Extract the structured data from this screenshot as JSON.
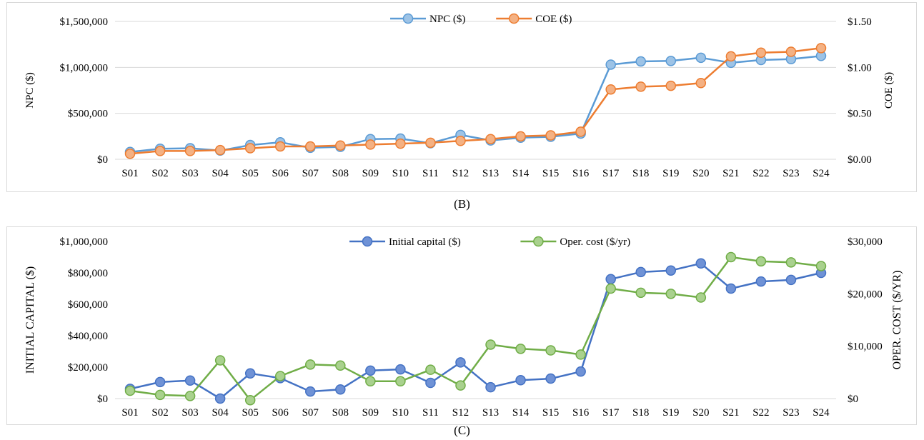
{
  "charts": [
    {
      "caption": "(B)",
      "chart_data": {
        "type": "line",
        "categories": [
          "S01",
          "S02",
          "S03",
          "S04",
          "S05",
          "S06",
          "S07",
          "S08",
          "S09",
          "S10",
          "S11",
          "S12",
          "S13",
          "S14",
          "S15",
          "S16",
          "S17",
          "S18",
          "S19",
          "S20",
          "S21",
          "S22",
          "S23",
          "S24"
        ],
        "ylabel_left": "NPC ($)",
        "ylabel_right": "COE ($)",
        "ylim_left": [
          0,
          1500000
        ],
        "ylim_right": [
          0,
          1.5
        ],
        "yticks_left": [
          "$0",
          "$500,000",
          "$1,000,000",
          "$1,500,000"
        ],
        "yticks_right": [
          "$0.00",
          "$0.50",
          "$1.00",
          "$1.50"
        ],
        "grid": true,
        "legend_position": "top-center",
        "series": [
          {
            "name": "NPC ($)",
            "axis": "left",
            "color": "#5b9bd5",
            "fill": "#9dc3e6",
            "values": [
              80000,
              115000,
              120000,
              95000,
              155000,
              185000,
              125000,
              135000,
              220000,
              225000,
              175000,
              265000,
              205000,
              235000,
              245000,
              280000,
              1030000,
              1065000,
              1070000,
              1105000,
              1050000,
              1080000,
              1090000,
              1125000
            ]
          },
          {
            "name": "COE ($)",
            "axis": "right",
            "color": "#ed7d31",
            "fill": "#f4b183",
            "values": [
              0.06,
              0.09,
              0.09,
              0.1,
              0.12,
              0.14,
              0.14,
              0.15,
              0.16,
              0.17,
              0.18,
              0.2,
              0.22,
              0.25,
              0.26,
              0.3,
              0.76,
              0.79,
              0.8,
              0.83,
              1.12,
              1.16,
              1.17,
              1.21
            ]
          }
        ]
      }
    },
    {
      "caption": "(C)",
      "chart_data": {
        "type": "line",
        "categories": [
          "S01",
          "S02",
          "S03",
          "S04",
          "S05",
          "S06",
          "S07",
          "S08",
          "S09",
          "S10",
          "S11",
          "S12",
          "S13",
          "S14",
          "S15",
          "S16",
          "S17",
          "S18",
          "S19",
          "S20",
          "S21",
          "S22",
          "S23",
          "S24"
        ],
        "ylabel_left": "INITIAL CAPITAL ($)",
        "ylabel_right": "OPER. COST ($/YR)",
        "ylim_left": [
          0,
          1000000
        ],
        "ylim_right": [
          0,
          30000
        ],
        "yticks_left": [
          "$0",
          "$200,000",
          "$400,000",
          "$600,000",
          "$800,000",
          "$1,000,000"
        ],
        "yticks_right": [
          "$0",
          "$10,000",
          "$20,000",
          "$30,000"
        ],
        "grid": false,
        "legend_position": "top-center",
        "series": [
          {
            "name": "Initial capital ($)",
            "axis": "left",
            "color": "#4472c4",
            "fill": "#6f92d6",
            "values": [
              62000,
              105000,
              115000,
              0,
              160000,
              130000,
              45000,
              58000,
              178000,
              186000,
              100000,
              230000,
              72000,
              117000,
              127000,
              172000,
              760000,
              805000,
              815000,
              860000,
              700000,
              745000,
              755000,
              800000
            ]
          },
          {
            "name": "Oper. cost ($/yr)",
            "axis": "right",
            "color": "#70ad47",
            "fill": "#a9d18e",
            "values": [
              1500,
              700,
              500,
              7300,
              -300,
              4300,
              6500,
              6300,
              3300,
              3300,
              5500,
              2500,
              10300,
              9500,
              9200,
              8400,
              21000,
              20200,
              20000,
              19300,
              27000,
              26200,
              26000,
              25300
            ]
          }
        ]
      }
    }
  ]
}
